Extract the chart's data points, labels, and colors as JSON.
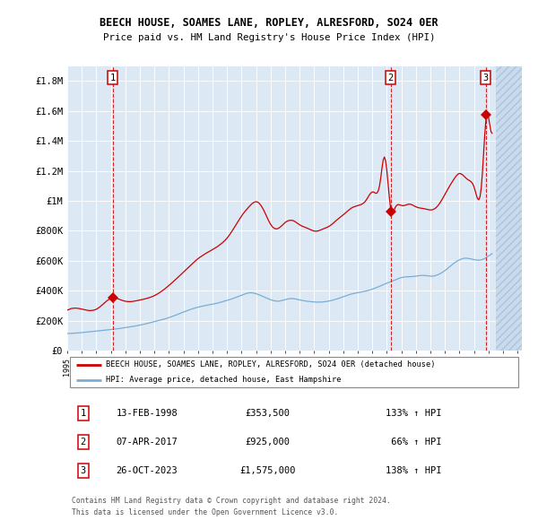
{
  "title": "BEECH HOUSE, SOAMES LANE, ROPLEY, ALRESFORD, SO24 0ER",
  "subtitle": "Price paid vs. HM Land Registry's House Price Index (HPI)",
  "ylim": [
    0,
    1900000
  ],
  "yticks": [
    0,
    200000,
    400000,
    600000,
    800000,
    1000000,
    1200000,
    1400000,
    1600000,
    1800000
  ],
  "ytick_labels": [
    "£0",
    "£200K",
    "£400K",
    "£600K",
    "£800K",
    "£1M",
    "£1.2M",
    "£1.4M",
    "£1.6M",
    "£1.8M"
  ],
  "background_color": "#dce9f5",
  "red_color": "#cc0000",
  "blue_color": "#7aadd4",
  "sale_points": [
    {
      "date_num": 1998.12,
      "price": 353500,
      "label": "1"
    },
    {
      "date_num": 2017.27,
      "price": 925000,
      "label": "2"
    },
    {
      "date_num": 2023.82,
      "price": 1575000,
      "label": "3"
    }
  ],
  "legend_red": "BEECH HOUSE, SOAMES LANE, ROPLEY, ALRESFORD, SO24 0ER (detached house)",
  "legend_blue": "HPI: Average price, detached house, East Hampshire",
  "table_rows": [
    {
      "num": "1",
      "date": "13-FEB-1998",
      "price": "£353,500",
      "change": "133% ↑ HPI"
    },
    {
      "num": "2",
      "date": "07-APR-2017",
      "price": "£925,000",
      "change": " 66% ↑ HPI"
    },
    {
      "num": "3",
      "date": "26-OCT-2023",
      "price": "£1,575,000",
      "change": "138% ↑ HPI"
    }
  ],
  "footer": "Contains HM Land Registry data © Crown copyright and database right 2024.\nThis data is licensed under the Open Government Licence v3.0.",
  "xlim_start": 1995.0,
  "xlim_end": 2026.3,
  "hatch_start": 2024.5
}
